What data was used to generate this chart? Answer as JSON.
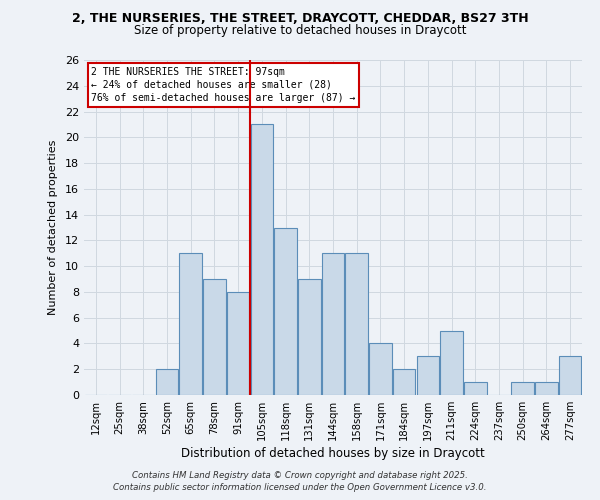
{
  "title_line1": "2, THE NURSERIES, THE STREET, DRAYCOTT, CHEDDAR, BS27 3TH",
  "title_line2": "Size of property relative to detached houses in Draycott",
  "xlabel": "Distribution of detached houses by size in Draycott",
  "ylabel": "Number of detached properties",
  "bar_labels": [
    "12sqm",
    "25sqm",
    "38sqm",
    "52sqm",
    "65sqm",
    "78sqm",
    "91sqm",
    "105sqm",
    "118sqm",
    "131sqm",
    "144sqm",
    "158sqm",
    "171sqm",
    "184sqm",
    "197sqm",
    "211sqm",
    "224sqm",
    "237sqm",
    "250sqm",
    "264sqm",
    "277sqm"
  ],
  "bar_values": [
    0,
    0,
    0,
    2,
    11,
    9,
    8,
    21,
    13,
    9,
    11,
    11,
    4,
    2,
    3,
    5,
    1,
    0,
    1,
    1,
    3
  ],
  "bar_color": "#c9d9e8",
  "bar_edge_color": "#5b8db8",
  "grid_color": "#d0d8e0",
  "vline_color": "#cc0000",
  "vline_x": 6.5,
  "annotation_box_text": "2 THE NURSERIES THE STREET: 97sqm\n← 24% of detached houses are smaller (28)\n76% of semi-detached houses are larger (87) →",
  "annotation_box_color": "#ffffff",
  "annotation_box_edge_color": "#cc0000",
  "ylim": [
    0,
    26
  ],
  "yticks": [
    0,
    2,
    4,
    6,
    8,
    10,
    12,
    14,
    16,
    18,
    20,
    22,
    24,
    26
  ],
  "footer_line1": "Contains HM Land Registry data © Crown copyright and database right 2025.",
  "footer_line2": "Contains public sector information licensed under the Open Government Licence v3.0.",
  "bg_color": "#eef2f7"
}
